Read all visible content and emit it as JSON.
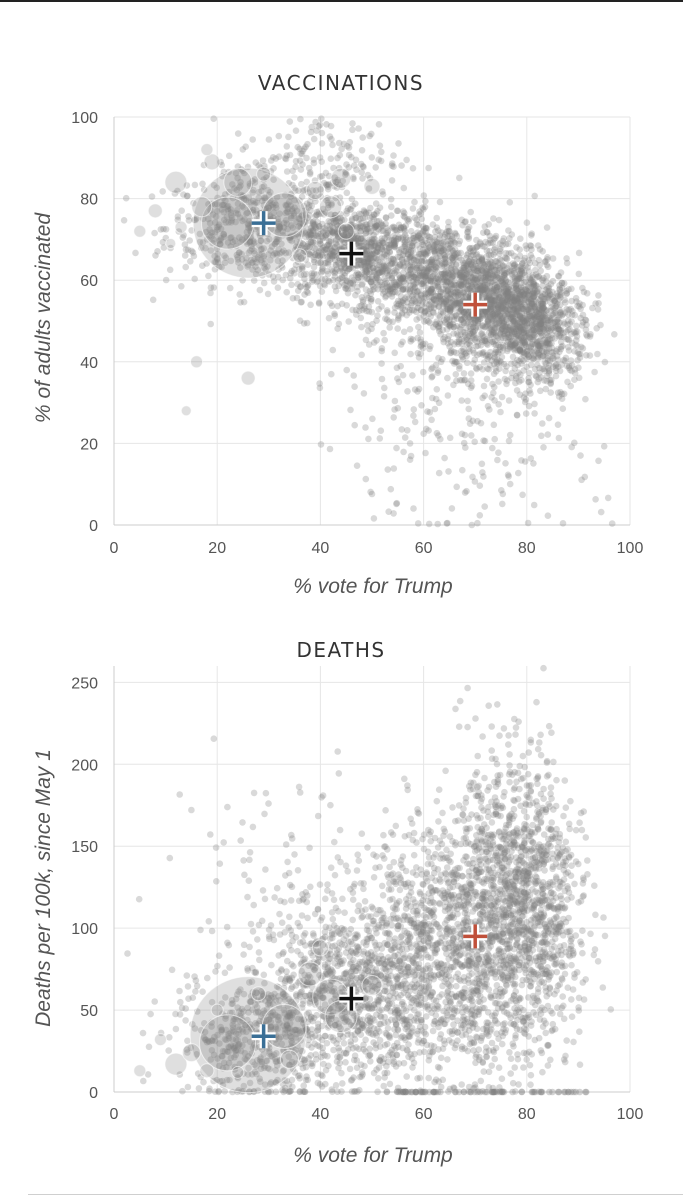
{
  "colors": {
    "point": "#808080",
    "overall_marker": "#111111",
    "dem_marker": "#3a6f96",
    "gop_marker": "#c0503a",
    "grid": "#e6e6e6"
  },
  "chart_data": [
    {
      "type": "scatter",
      "title": "VACCINATIONS",
      "xlabel": "% vote for Trump",
      "ylabel": "% of adults vaccinated",
      "xlim": [
        0,
        100
      ],
      "ylim": [
        0,
        100
      ],
      "x_ticks": [
        "0",
        "20",
        "40",
        "60",
        "80",
        "100"
      ],
      "y_ticks": [
        "0",
        "20",
        "40",
        "60",
        "80",
        "100"
      ],
      "grid": true,
      "markers": [
        {
          "x": 29,
          "y": 74,
          "color": "#3a6f96"
        },
        {
          "x": 46,
          "y": 66.5,
          "color": "#111111"
        },
        {
          "x": 70,
          "y": 54,
          "color": "#c0503a"
        }
      ],
      "bubbles": [
        {
          "x": 26,
          "y": 74,
          "r": 55
        },
        {
          "x": 22,
          "y": 74,
          "r": 26
        },
        {
          "x": 33,
          "y": 76,
          "r": 22
        },
        {
          "x": 24,
          "y": 84,
          "r": 14
        },
        {
          "x": 12,
          "y": 84,
          "r": 11
        },
        {
          "x": 19,
          "y": 89,
          "r": 8
        },
        {
          "x": 17,
          "y": 78,
          "r": 10
        },
        {
          "x": 39,
          "y": 82,
          "r": 9
        },
        {
          "x": 42,
          "y": 78,
          "r": 11
        },
        {
          "x": 45,
          "y": 72,
          "r": 8
        },
        {
          "x": 8,
          "y": 77,
          "r": 7
        },
        {
          "x": 5,
          "y": 72,
          "r": 6
        },
        {
          "x": 16,
          "y": 40,
          "r": 6
        },
        {
          "x": 26,
          "y": 36,
          "r": 7
        },
        {
          "x": 13,
          "y": 73,
          "r": 6
        },
        {
          "x": 36,
          "y": 66,
          "r": 7
        },
        {
          "x": 29,
          "y": 86,
          "r": 7
        },
        {
          "x": 44,
          "y": 85,
          "r": 10
        },
        {
          "x": 50,
          "y": 83,
          "r": 8
        },
        {
          "x": 18,
          "y": 92,
          "r": 6
        },
        {
          "x": 11,
          "y": 69,
          "r": 5
        },
        {
          "x": 14,
          "y": 28,
          "r": 5
        }
      ],
      "cloud": [
        {
          "x": 28,
          "y": 73,
          "sx": 9,
          "sy": 7,
          "n": 500
        },
        {
          "x": 47,
          "y": 67,
          "sx": 8,
          "sy": 6,
          "n": 900
        },
        {
          "x": 64,
          "y": 60,
          "sx": 8,
          "sy": 7,
          "n": 1000
        },
        {
          "x": 76,
          "y": 52,
          "sx": 6,
          "sy": 7,
          "n": 1100
        },
        {
          "x": 84,
          "y": 46,
          "sx": 4,
          "sy": 6,
          "n": 300
        },
        {
          "x": 68,
          "y": 35,
          "sx": 12,
          "sy": 18,
          "n": 350
        },
        {
          "x": 40,
          "y": 90,
          "sx": 8,
          "sy": 6,
          "n": 150
        }
      ]
    },
    {
      "type": "scatter",
      "title": "DEATHS",
      "xlabel": "% vote for Trump",
      "ylabel": "Deaths per 100k, since May 1",
      "xlim": [
        0,
        100
      ],
      "ylim": [
        0,
        260
      ],
      "x_ticks": [
        "0",
        "20",
        "40",
        "60",
        "80",
        "100"
      ],
      "y_ticks": [
        "0",
        "50",
        "100",
        "150",
        "200",
        "250"
      ],
      "grid": true,
      "markers": [
        {
          "x": 29,
          "y": 34,
          "color": "#3a6f96"
        },
        {
          "x": 46,
          "y": 57,
          "color": "#111111"
        },
        {
          "x": 70,
          "y": 95,
          "color": "#c0503a"
        }
      ],
      "bubbles": [
        {
          "x": 26,
          "y": 35,
          "r": 58
        },
        {
          "x": 22,
          "y": 30,
          "r": 28
        },
        {
          "x": 33,
          "y": 40,
          "r": 22
        },
        {
          "x": 42,
          "y": 58,
          "r": 18
        },
        {
          "x": 38,
          "y": 72,
          "r": 12
        },
        {
          "x": 44,
          "y": 46,
          "r": 16
        },
        {
          "x": 50,
          "y": 65,
          "r": 10
        },
        {
          "x": 12,
          "y": 17,
          "r": 11
        },
        {
          "x": 15,
          "y": 24,
          "r": 9
        },
        {
          "x": 18,
          "y": 13,
          "r": 7
        },
        {
          "x": 9,
          "y": 32,
          "r": 6
        },
        {
          "x": 5,
          "y": 13,
          "r": 6
        },
        {
          "x": 34,
          "y": 20,
          "r": 9
        },
        {
          "x": 40,
          "y": 88,
          "r": 8
        },
        {
          "x": 28,
          "y": 60,
          "r": 7
        },
        {
          "x": 20,
          "y": 50,
          "r": 6
        },
        {
          "x": 24,
          "y": 12,
          "r": 6
        }
      ],
      "cloud": [
        {
          "x": 28,
          "y": 36,
          "sx": 8,
          "sy": 22,
          "n": 500
        },
        {
          "x": 46,
          "y": 60,
          "sx": 8,
          "sy": 28,
          "n": 800
        },
        {
          "x": 62,
          "y": 85,
          "sx": 8,
          "sy": 38,
          "n": 1000
        },
        {
          "x": 76,
          "y": 110,
          "sx": 6,
          "sy": 45,
          "n": 1200
        },
        {
          "x": 84,
          "y": 110,
          "sx": 4,
          "sy": 40,
          "n": 350
        },
        {
          "x": 30,
          "y": 130,
          "sx": 10,
          "sy": 40,
          "n": 90
        }
      ],
      "zero_row": {
        "x_from": 55,
        "x_to": 92,
        "n": 70
      }
    }
  ]
}
